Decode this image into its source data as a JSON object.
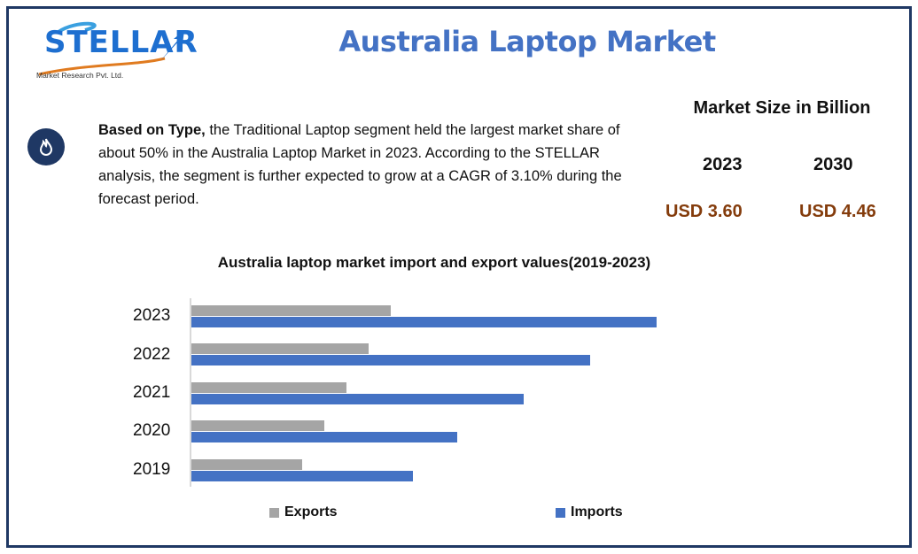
{
  "header": {
    "logo_text": "STELLAR",
    "logo_subtitle": "Market Research Pvt. Ltd.",
    "title": "Australia Laptop Market"
  },
  "summary": {
    "icon": "fire-icon",
    "bold_lead": "Based on Type,",
    "text": " the Traditional Laptop segment held the largest market share of about 50% in the Australia Laptop Market in 2023. According to the STELLAR analysis, the segment is further expected to grow at a CAGR of 3.10% during the forecast period."
  },
  "market_size": {
    "title": "Market Size in Billion",
    "years": [
      "2023",
      "2030"
    ],
    "values": [
      "USD 3.60",
      "USD 4.46"
    ]
  },
  "colors": {
    "title_blue": "#4472c4",
    "frame_navy": "#1f3864",
    "value_brown": "#843c0c",
    "exports_gray": "#a5a5a5",
    "imports_blue": "#4472c4"
  },
  "chart_data": {
    "type": "bar",
    "orientation": "horizontal",
    "title": "Australia laptop market import and export values(2019-2023)",
    "categories": [
      "2023",
      "2022",
      "2021",
      "2020",
      "2019"
    ],
    "series": [
      {
        "name": "Exports",
        "color": "#a5a5a5",
        "values": [
          225,
          200,
          175,
          150,
          125
        ]
      },
      {
        "name": "Imports",
        "color": "#4472c4",
        "values": [
          525,
          450,
          375,
          300,
          250
        ]
      }
    ],
    "value_note": "No value axis shown; values are relative bar lengths",
    "xlabel": "",
    "ylabel": "",
    "grid": false,
    "legend_position": "bottom",
    "legend": [
      "Exports",
      "Imports"
    ]
  }
}
